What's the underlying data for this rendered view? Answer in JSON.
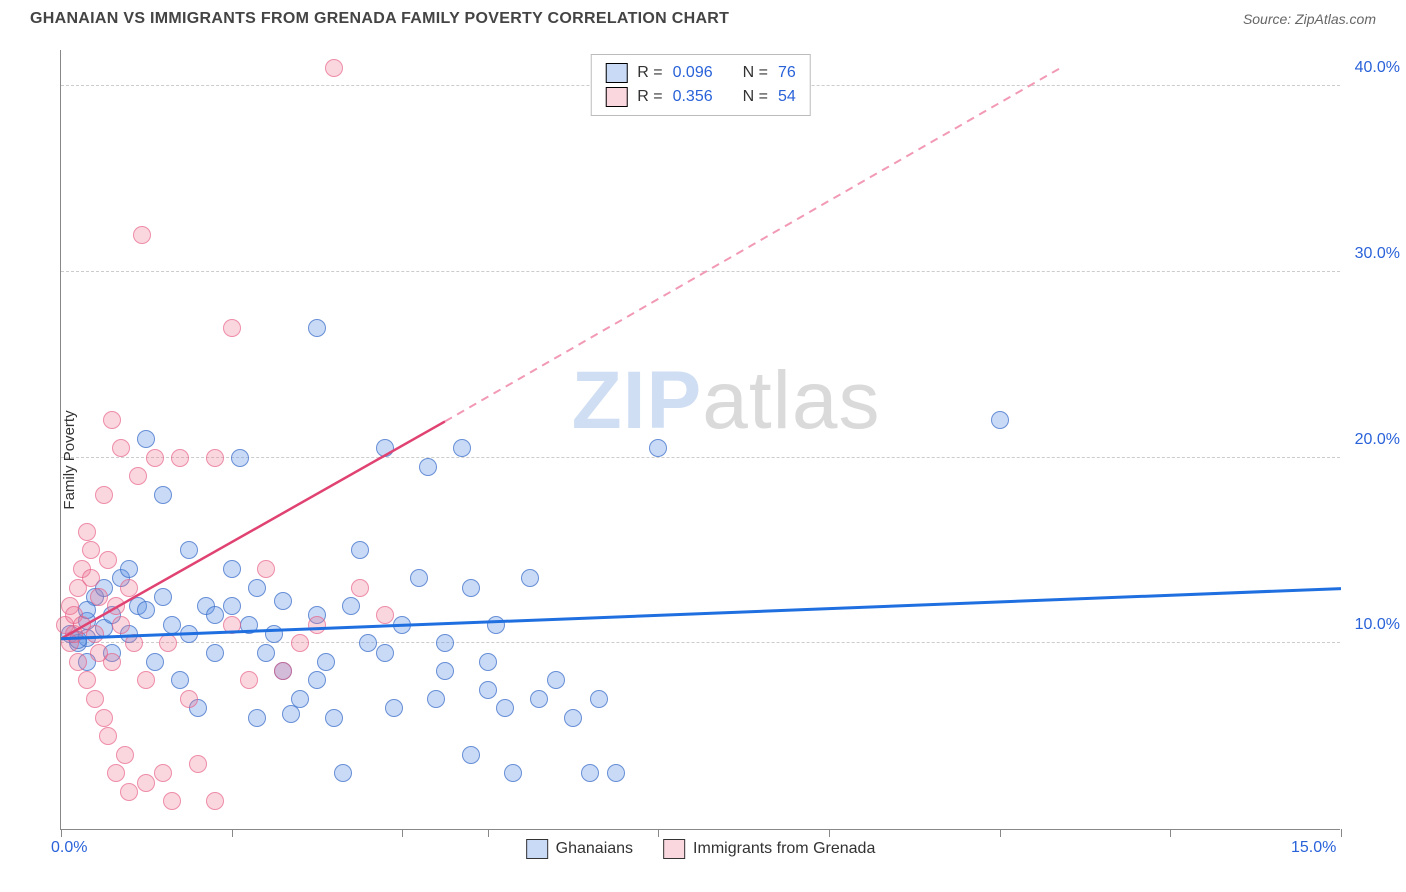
{
  "header": {
    "title": "GHANAIAN VS IMMIGRANTS FROM GRENADA FAMILY POVERTY CORRELATION CHART",
    "source": "Source: ZipAtlas.com"
  },
  "chart": {
    "type": "scatter",
    "ylabel": "Family Poverty",
    "xlim": [
      0,
      15
    ],
    "ylim": [
      0,
      42
    ],
    "xticks": [
      0,
      2,
      4,
      5,
      7,
      9,
      11,
      13,
      15
    ],
    "xtick_labels": {
      "0": "0.0%",
      "15": "15.0%"
    },
    "yticks": [
      10,
      20,
      30,
      40
    ],
    "ytick_labels": {
      "10": "10.0%",
      "20": "20.0%",
      "30": "30.0%",
      "40": "40.0%"
    },
    "background_color": "#ffffff",
    "grid_color": "#cccccc",
    "marker_size": 18,
    "watermark": {
      "part1": "ZIP",
      "part2": "atlas"
    },
    "series": [
      {
        "id": "a",
        "label": "Ghanaians",
        "color_fill": "rgba(96,150,230,0.35)",
        "color_stroke": "rgba(60,110,200,0.7)",
        "R": "0.096",
        "N": "76",
        "trend": {
          "x1": 0,
          "y1": 10.3,
          "x2": 15,
          "y2": 13.0,
          "dash": false,
          "color": "#1f6fe0",
          "width": 3
        },
        "points": [
          [
            0.1,
            10.5
          ],
          [
            0.3,
            11.2
          ],
          [
            0.2,
            10.0
          ],
          [
            0.4,
            12.5
          ],
          [
            0.3,
            9.0
          ],
          [
            0.5,
            10.8
          ],
          [
            0.6,
            11.5
          ],
          [
            0.7,
            13.5
          ],
          [
            0.3,
            10.3
          ],
          [
            0.9,
            12.0
          ],
          [
            0.8,
            14.0
          ],
          [
            1.0,
            21.0
          ],
          [
            1.2,
            18.0
          ],
          [
            1.3,
            11.0
          ],
          [
            1.4,
            8.0
          ],
          [
            1.5,
            15.0
          ],
          [
            1.6,
            6.5
          ],
          [
            1.7,
            12.0
          ],
          [
            1.8,
            9.5
          ],
          [
            2.0,
            12.0
          ],
          [
            2.1,
            20.0
          ],
          [
            2.2,
            11.0
          ],
          [
            2.3,
            6.0
          ],
          [
            2.4,
            9.5
          ],
          [
            2.5,
            10.5
          ],
          [
            2.6,
            12.3
          ],
          [
            2.7,
            6.2
          ],
          [
            2.8,
            7.0
          ],
          [
            3.0,
            27.0
          ],
          [
            3.0,
            11.5
          ],
          [
            3.1,
            9.0
          ],
          [
            3.2,
            6.0
          ],
          [
            3.3,
            3.0
          ],
          [
            3.5,
            15.0
          ],
          [
            3.6,
            10.0
          ],
          [
            3.8,
            9.5
          ],
          [
            3.8,
            20.5
          ],
          [
            4.0,
            11.0
          ],
          [
            4.2,
            13.5
          ],
          [
            4.3,
            19.5
          ],
          [
            4.4,
            7.0
          ],
          [
            4.5,
            8.5
          ],
          [
            4.7,
            20.5
          ],
          [
            4.8,
            13.0
          ],
          [
            4.8,
            4.0
          ],
          [
            5.0,
            9.0
          ],
          [
            5.1,
            11.0
          ],
          [
            5.2,
            6.5
          ],
          [
            5.3,
            3.0
          ],
          [
            5.5,
            13.5
          ],
          [
            5.6,
            7.0
          ],
          [
            5.8,
            8.0
          ],
          [
            6.0,
            6.0
          ],
          [
            6.2,
            3.0
          ],
          [
            6.3,
            7.0
          ],
          [
            6.5,
            3.0
          ],
          [
            7.0,
            20.5
          ],
          [
            11.0,
            22.0
          ],
          [
            0.2,
            10.2
          ],
          [
            0.3,
            11.8
          ],
          [
            0.5,
            13.0
          ],
          [
            0.6,
            9.5
          ],
          [
            0.8,
            10.5
          ],
          [
            1.0,
            11.8
          ],
          [
            1.1,
            9.0
          ],
          [
            1.2,
            12.5
          ],
          [
            1.5,
            10.5
          ],
          [
            1.8,
            11.5
          ],
          [
            2.0,
            14.0
          ],
          [
            2.3,
            13.0
          ],
          [
            2.6,
            8.5
          ],
          [
            3.0,
            8.0
          ],
          [
            3.4,
            12.0
          ],
          [
            3.9,
            6.5
          ],
          [
            4.5,
            10.0
          ],
          [
            5.0,
            7.5
          ]
        ]
      },
      {
        "id": "b",
        "label": "Immigrants from Grenada",
        "color_fill": "rgba(240,120,150,0.30)",
        "color_stroke": "rgba(230,90,130,0.6)",
        "R": "0.356",
        "N": "54",
        "trend_solid": {
          "x1": 0,
          "y1": 10.3,
          "x2": 4.5,
          "y2": 22.0,
          "dash": false,
          "color": "#e04272",
          "width": 2.5
        },
        "trend_dash": {
          "x1": 4.5,
          "y1": 22.0,
          "x2": 11.7,
          "y2": 41.0,
          "dash": true,
          "color": "#f29ab5",
          "width": 2
        },
        "points": [
          [
            0.05,
            11.0
          ],
          [
            0.1,
            10.0
          ],
          [
            0.1,
            12.0
          ],
          [
            0.15,
            11.5
          ],
          [
            0.2,
            13.0
          ],
          [
            0.2,
            9.0
          ],
          [
            0.25,
            14.0
          ],
          [
            0.3,
            16.0
          ],
          [
            0.3,
            8.0
          ],
          [
            0.35,
            15.0
          ],
          [
            0.4,
            10.5
          ],
          [
            0.4,
            7.0
          ],
          [
            0.45,
            12.5
          ],
          [
            0.5,
            6.0
          ],
          [
            0.5,
            18.0
          ],
          [
            0.55,
            5.0
          ],
          [
            0.6,
            9.0
          ],
          [
            0.6,
            22.0
          ],
          [
            0.65,
            3.0
          ],
          [
            0.7,
            11.0
          ],
          [
            0.7,
            20.5
          ],
          [
            0.75,
            4.0
          ],
          [
            0.8,
            13.0
          ],
          [
            0.8,
            2.0
          ],
          [
            0.85,
            10.0
          ],
          [
            0.9,
            19.0
          ],
          [
            0.95,
            32.0
          ],
          [
            1.0,
            8.0
          ],
          [
            1.0,
            2.5
          ],
          [
            1.1,
            20.0
          ],
          [
            1.2,
            3.0
          ],
          [
            1.25,
            10.0
          ],
          [
            1.3,
            1.5
          ],
          [
            1.4,
            20.0
          ],
          [
            1.5,
            7.0
          ],
          [
            1.6,
            3.5
          ],
          [
            1.8,
            20.0
          ],
          [
            1.8,
            1.5
          ],
          [
            2.0,
            27.0
          ],
          [
            2.0,
            11.0
          ],
          [
            2.2,
            8.0
          ],
          [
            2.4,
            14.0
          ],
          [
            2.6,
            8.5
          ],
          [
            2.8,
            10.0
          ],
          [
            3.0,
            11.0
          ],
          [
            3.2,
            41.0
          ],
          [
            3.5,
            13.0
          ],
          [
            3.8,
            11.5
          ],
          [
            0.15,
            10.5
          ],
          [
            0.25,
            11.0
          ],
          [
            0.35,
            13.5
          ],
          [
            0.45,
            9.5
          ],
          [
            0.55,
            14.5
          ],
          [
            0.65,
            12.0
          ]
        ]
      }
    ],
    "legend_top_prefix_R": "R = ",
    "legend_top_prefix_N": "N = "
  }
}
